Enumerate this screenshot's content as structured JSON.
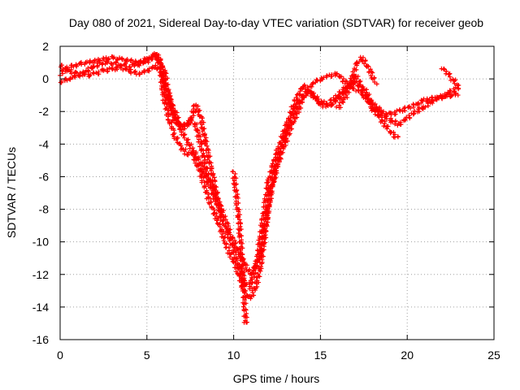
{
  "chart_data": {
    "type": "scatter",
    "title": "Day 080 of 2021, Sidereal Day-to-day VTEC variation (SDTVAR) for receiver geob",
    "xlabel": "GPS time / hours",
    "ylabel": "SDTVAR / TECUs",
    "xlim": [
      0,
      25
    ],
    "ylim": [
      -16,
      2
    ],
    "xticks": [
      0,
      5,
      10,
      15,
      20,
      25
    ],
    "yticks": [
      2,
      0,
      -2,
      -4,
      -6,
      -8,
      -10,
      -12,
      -14,
      -16
    ],
    "xtick_labels": [
      "0",
      "5",
      "10",
      "15",
      "20",
      "25"
    ],
    "ytick_labels": [
      "2",
      "0",
      "-2",
      "-4",
      "-6",
      "-8",
      "-10",
      "-12",
      "-14",
      "-16"
    ],
    "grid": true,
    "marker": "plus",
    "color": "#ff0000",
    "series": [
      {
        "x": [
          0.0,
          0.5,
          1.0,
          1.5,
          2.0,
          2.5,
          3.0,
          3.5,
          4.0,
          4.5,
          5.0,
          5.5,
          5.8,
          6.0,
          6.3,
          6.6,
          7.0,
          7.3,
          7.6,
          8.0,
          8.3,
          8.6,
          9.0,
          9.3,
          9.6,
          10.0,
          10.3,
          10.6,
          10.9,
          11.1,
          11.4,
          11.7,
          12.0,
          12.5,
          13.0,
          13.5,
          14.0,
          14.5,
          15.0,
          15.5,
          16.0,
          16.5,
          17.0,
          17.5,
          18.0,
          18.5,
          19.0,
          19.5,
          20.0,
          20.5,
          21.0,
          21.5,
          22.0,
          22.5,
          23.0
        ],
        "y": [
          0.3,
          0.7,
          0.9,
          1.0,
          1.1,
          1.2,
          1.3,
          1.2,
          1.1,
          1.0,
          1.2,
          1.5,
          1.0,
          -0.5,
          -1.5,
          -2.5,
          -3.2,
          -3.8,
          -4.3,
          -5.0,
          -5.8,
          -6.5,
          -7.5,
          -8.5,
          -9.3,
          -10.5,
          -11.5,
          -12.5,
          -12.8,
          -12.2,
          -10.8,
          -8.5,
          -6.3,
          -4.5,
          -3.0,
          -1.5,
          -0.4,
          -0.9,
          -1.6,
          -1.7,
          -1.3,
          -0.6,
          -0.2,
          -0.8,
          -1.7,
          -2.2,
          -2.5,
          -2.8,
          -2.4,
          -2.0,
          -1.7,
          -1.3,
          -1.1,
          -1.0,
          -0.9
        ]
      },
      {
        "x": [
          0.0,
          0.5,
          1.0,
          1.5,
          2.0,
          2.5,
          3.0,
          3.5,
          4.0,
          4.5,
          5.0,
          5.5,
          5.8,
          6.0,
          6.3,
          6.6,
          7.0,
          7.3,
          7.6,
          8.0,
          8.3,
          8.6,
          9.0,
          9.3,
          9.6,
          10.0,
          10.3,
          10.6,
          10.9,
          11.2,
          11.5,
          11.8,
          12.1,
          12.6,
          13.1,
          13.6,
          14.0,
          14.5,
          15.0,
          15.5,
          16.0,
          16.5,
          17.0,
          17.5,
          18.0,
          18.5,
          19.0,
          19.5
        ],
        "y": [
          0.8,
          0.5,
          0.3,
          0.2,
          0.3,
          0.5,
          0.6,
          0.7,
          0.5,
          0.3,
          0.5,
          0.8,
          0.4,
          -1.3,
          -2.5,
          -3.5,
          -4.2,
          -4.6,
          -4.5,
          -5.5,
          -6.5,
          -7.5,
          -8.5,
          -9.3,
          -10.3,
          -11.2,
          -12.0,
          -13.0,
          -13.5,
          -13.0,
          -11.8,
          -9.5,
          -7.0,
          -5.0,
          -3.5,
          -2.2,
          -1.2,
          -0.3,
          0.0,
          0.2,
          0.3,
          -0.3,
          -0.6,
          -1.0,
          -1.8,
          -2.5,
          -3.2,
          -3.7
        ]
      },
      {
        "x": [
          0.0,
          0.5,
          1.0,
          1.5,
          2.0,
          2.5,
          3.0,
          3.5,
          4.0,
          4.5,
          5.0,
          5.5,
          5.8,
          6.0,
          6.3,
          6.6,
          6.9,
          7.2,
          7.5,
          7.8,
          8.1,
          8.4,
          8.8,
          9.2,
          9.5,
          9.8,
          10.1,
          10.4,
          10.7,
          11.0,
          11.3,
          11.6,
          11.9,
          12.3,
          12.8,
          13.3,
          13.8,
          14.2,
          14.6,
          15.0,
          15.5,
          16.0,
          16.5,
          17.0,
          17.5,
          18.0,
          18.5,
          19.0,
          19.5,
          20.0,
          20.5,
          21.0,
          21.5,
          22.0,
          22.5,
          23.0
        ],
        "y": [
          -0.2,
          0.0,
          0.2,
          0.5,
          0.8,
          1.0,
          1.0,
          0.9,
          0.8,
          0.9,
          1.1,
          1.4,
          0.8,
          -0.2,
          -1.2,
          -2.0,
          -2.8,
          -2.9,
          -2.5,
          -2.8,
          -4.0,
          -5.5,
          -6.8,
          -7.8,
          -8.6,
          -9.5,
          -10.2,
          -10.8,
          -11.5,
          -12.0,
          -11.5,
          -10.5,
          -8.5,
          -6.0,
          -4.0,
          -2.5,
          -1.3,
          -0.8,
          -1.0,
          -1.4,
          -1.5,
          -1.0,
          -0.5,
          0.2,
          -0.6,
          -1.5,
          -2.0,
          -2.2,
          -2.0,
          -1.8,
          -1.6,
          -1.3,
          -1.2,
          -1.1,
          -0.8,
          -0.5
        ]
      },
      {
        "x": [
          5.5,
          6.0,
          6.3,
          6.6,
          6.9,
          7.2,
          7.5,
          7.8,
          8.1,
          8.4,
          8.7,
          9.0,
          9.3
        ],
        "y": [
          1.6,
          0.5,
          -1.2,
          -2.3,
          -2.9,
          -3.0,
          -2.6,
          -1.6,
          -2.3,
          -4.0,
          -5.5,
          -7.0,
          -8.3
        ]
      },
      {
        "x": [
          10.0,
          10.3,
          10.5,
          10.7
        ],
        "y": [
          -5.7,
          -8.5,
          -11.5,
          -15.1
        ]
      },
      {
        "x": [
          16.0,
          16.4,
          16.8,
          17.1,
          17.4,
          17.8,
          18.2
        ],
        "y": [
          -1.8,
          -1.2,
          -0.2,
          1.0,
          1.3,
          0.6,
          -0.3
        ]
      },
      {
        "x": [
          22.0,
          22.3,
          22.6,
          23.0
        ],
        "y": [
          0.7,
          0.4,
          0.0,
          -0.5
        ]
      }
    ]
  }
}
